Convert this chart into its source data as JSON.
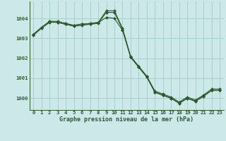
{
  "title": "Graphe pression niveau de la mer (hPa)",
  "background_color": "#cce8e8",
  "grid_color": "#aacfcf",
  "line_color": "#2d5a2d",
  "marker_color": "#2d5a2d",
  "xlim": [
    -0.5,
    23.5
  ],
  "ylim": [
    999.4,
    1004.85
  ],
  "yticks": [
    1000,
    1001,
    1002,
    1003,
    1004
  ],
  "xticks": [
    0,
    1,
    2,
    3,
    4,
    5,
    6,
    7,
    8,
    9,
    10,
    11,
    12,
    13,
    14,
    15,
    16,
    17,
    18,
    19,
    20,
    21,
    22,
    23
  ],
  "series": [
    [
      1003.2,
      1003.55,
      1003.85,
      1003.8,
      1003.7,
      1003.65,
      1003.72,
      1003.72,
      1003.78,
      1004.05,
      1004.0,
      1003.4,
      1002.05,
      1001.55,
      1001.05,
      1000.3,
      1000.15,
      1000.0,
      999.75,
      1000.0,
      999.85,
      1000.1,
      1000.38,
      1000.38
    ],
    [
      1003.2,
      1003.55,
      1003.85,
      1003.85,
      1003.75,
      1003.65,
      1003.7,
      1003.75,
      1003.8,
      1004.38,
      1004.38,
      1003.5,
      1002.1,
      1001.6,
      1001.1,
      1000.35,
      1000.2,
      1000.05,
      999.8,
      1000.05,
      999.9,
      1000.15,
      1000.45,
      1000.45
    ],
    [
      1003.15,
      1003.5,
      1003.8,
      1003.8,
      1003.7,
      1003.6,
      1003.65,
      1003.7,
      1003.75,
      1004.3,
      1004.3,
      1003.45,
      1002.05,
      1001.55,
      1001.05,
      1000.28,
      1000.13,
      999.98,
      999.73,
      999.98,
      999.83,
      1000.08,
      1000.38,
      1000.38
    ]
  ],
  "title_fontsize": 6.0,
  "tick_fontsize": 5.2
}
